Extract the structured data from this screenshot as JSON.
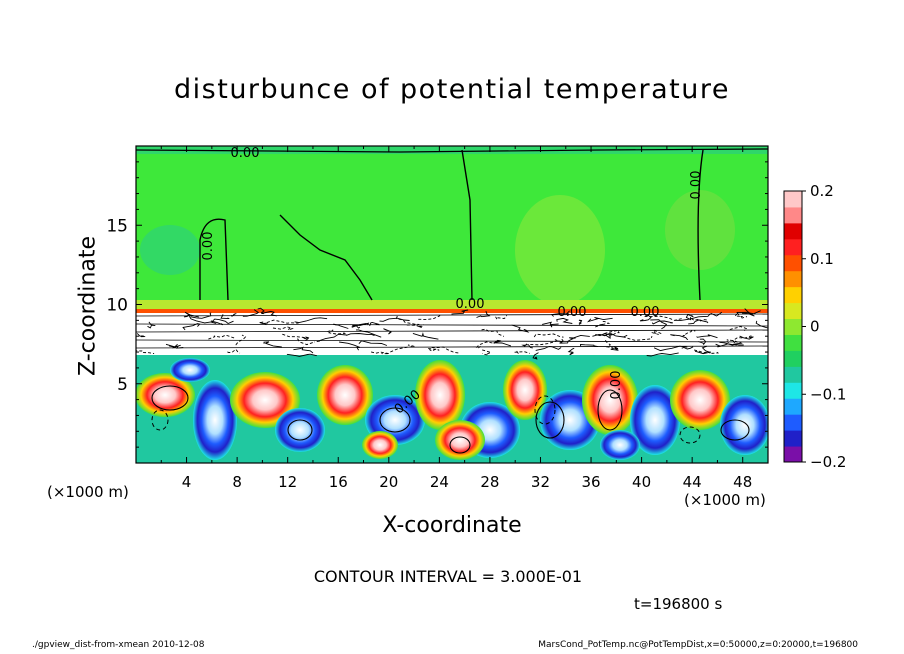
{
  "chart_data": {
    "type": "heatmap",
    "title": "disturbunce of potential temperature",
    "xlabel": "X-coordinate",
    "ylabel": "Z-coordinate",
    "x_unit_left": "(×1000 m)",
    "x_unit_right": "(×1000 m)",
    "xlim": [
      0,
      50
    ],
    "ylim": [
      0,
      20
    ],
    "x_ticks": [
      4,
      8,
      12,
      16,
      20,
      24,
      28,
      32,
      36,
      40,
      44,
      48
    ],
    "y_ticks": [
      5,
      10,
      15
    ],
    "colorbar": {
      "range": [
        -0.2,
        0.2
      ],
      "ticks": [
        0.2,
        0.1,
        0,
        -0.1,
        -0.2
      ],
      "tick_labels": [
        "0.2",
        "0.1",
        "0",
        "−0.1",
        "−0.2"
      ],
      "colors": [
        "#7a0fa8",
        "#2020c8",
        "#1e5cff",
        "#1ea8ff",
        "#1ee6e6",
        "#20c8a0",
        "#20d060",
        "#40e040",
        "#8ee830",
        "#d8e820",
        "#ffd000",
        "#ff9000",
        "#ff5000",
        "#ff2020",
        "#e00000",
        "#ff8888",
        "#ffc8c8"
      ]
    },
    "contour_labels": [
      "0.00",
      "0.00",
      "0.00",
      "0.00",
      "0.00",
      "0.00",
      "0.00",
      "0.00"
    ],
    "contour_interval": "CONTOUR INTERVAL = 3.000E-01",
    "time": "t=196800 s"
  },
  "footer": {
    "left": "./gpview_dist-from-xmean   2010-12-08",
    "right": "MarsCond_PotTemp.nc@PotTempDist,x=0:50000,z=0:20000,t=196800"
  }
}
